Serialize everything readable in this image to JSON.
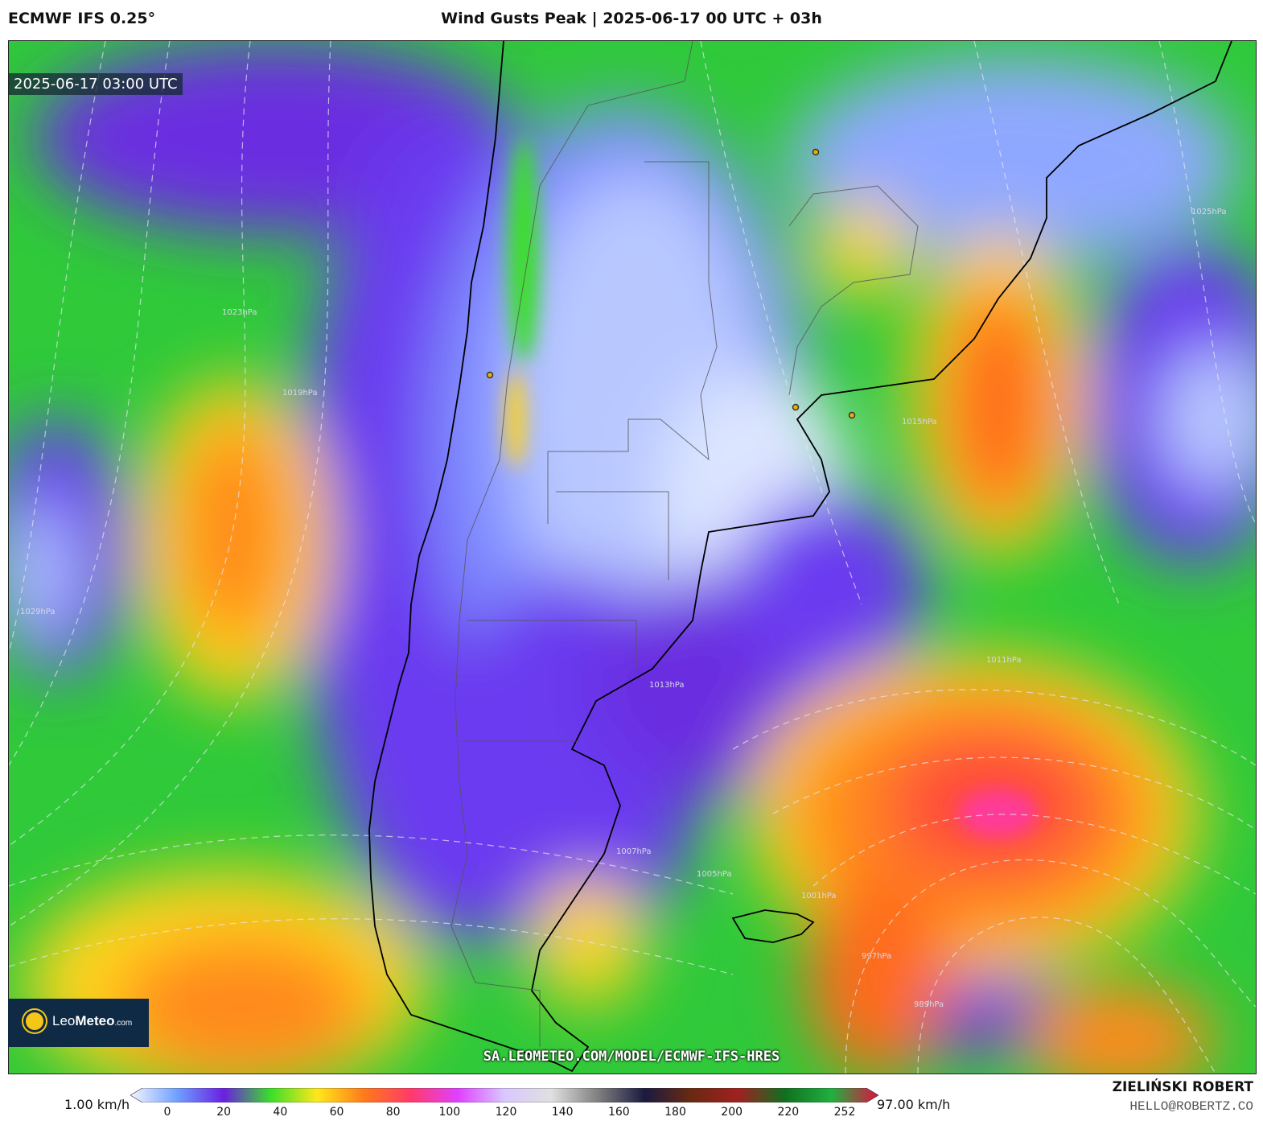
{
  "header": {
    "model": "ECMWF IFS 0.25°",
    "title": "Wind Gusts Peak | 2025-06-17 00 UTC + 03h"
  },
  "map": {
    "timestamp": "2025-06-17 03:00 UTC",
    "isobar_labels": [
      "1029hPa",
      "1025hPa",
      "1023hPa",
      "1019hPa",
      "1015hPa",
      "1013hPa",
      "1011hPa",
      "1007hPa",
      "1005hPa",
      "1001hPa",
      "997hPa",
      "989hPa"
    ],
    "source_url": "SA.LEOMETEO.COM/MODEL/ECMWF-IFS-HRES"
  },
  "logo": {
    "name_light": "Leo",
    "name_bold": "Meteo",
    "suffix": ".com"
  },
  "legend": {
    "min_label": "1.00 km/h",
    "max_label": "97.00 km/h",
    "ticks": [
      "0",
      "20",
      "40",
      "60",
      "80",
      "100",
      "120",
      "140",
      "160",
      "180",
      "200",
      "220",
      "252"
    ],
    "colors": [
      "#f4f4ff",
      "#6fa0ff",
      "#6a1fe0",
      "#3adf2a",
      "#ffe81a",
      "#ff7a1a",
      "#ff3a6a",
      "#e040ff",
      "#d8c8ff",
      "#e0e0e0",
      "#808080",
      "#1a1a40",
      "#6a2a10",
      "#a02020",
      "#107020",
      "#20b040",
      "#e01040"
    ]
  },
  "credits": {
    "author": "ZIELIŃSKI ROBERT",
    "contact": "HELLO@ROBERTZ.CO"
  }
}
